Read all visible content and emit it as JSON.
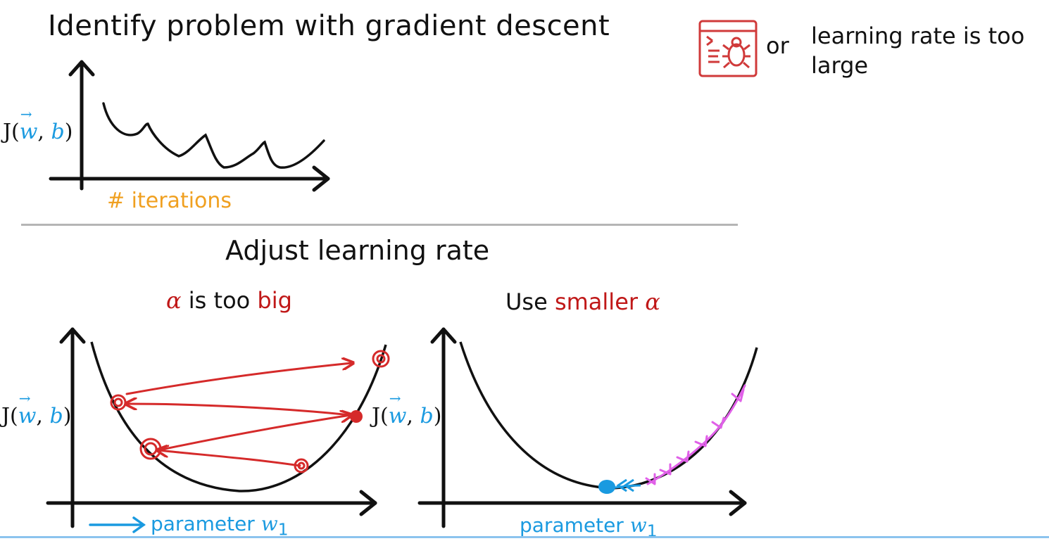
{
  "header": {
    "title": "Identify problem with gradient descent",
    "or_label": "or",
    "note": "learning rate is too large",
    "icon": "code-bug-icon",
    "accent_color": "#d03a3a"
  },
  "top_chart": {
    "y_label_prefix": "J(",
    "y_label_w": "w",
    "y_label_sep": ", ",
    "y_label_b": "b",
    "y_label_suffix": ")",
    "x_label": "# iterations",
    "x_label_color": "#f0a020"
  },
  "section": {
    "title": "Adjust learning rate",
    "left_sub_alpha": "α",
    "left_sub_mid": " is too ",
    "left_sub_big": "big",
    "right_sub_use": "Use ",
    "right_sub_smaller": "smaller",
    "right_sub_alpha": "α"
  },
  "bottom_left_chart": {
    "y_label_prefix": "J(",
    "y_label_w": "w",
    "y_label_sep": ", ",
    "y_label_b": "b",
    "y_label_suffix": ")",
    "x_label_text": "parameter ",
    "x_label_var": "w",
    "x_label_sub": "1"
  },
  "bottom_right_chart": {
    "y_label_prefix": "J(",
    "y_label_w": "w",
    "y_label_sep": ", ",
    "y_label_b": "b",
    "y_label_suffix": ")",
    "x_label_text": "parameter ",
    "x_label_var": "w",
    "x_label_sub": "1"
  },
  "colors": {
    "red": "#c01818",
    "blue": "#1a9ae0",
    "magenta": "#e060e8",
    "orange": "#f0a020"
  }
}
